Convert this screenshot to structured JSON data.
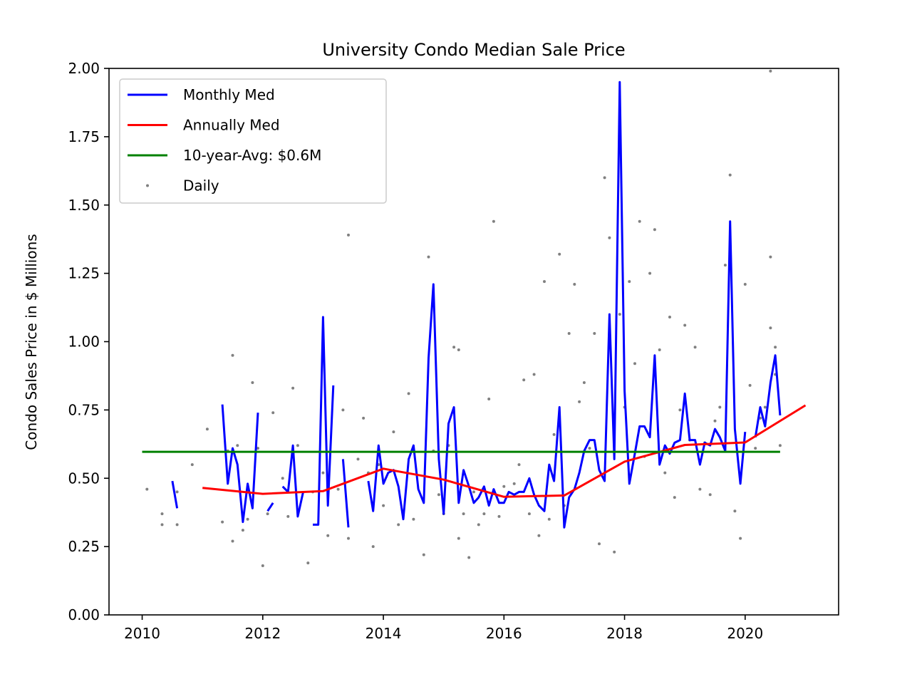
{
  "chart_data": {
    "type": "line",
    "title": "University Condo Median Sale Price",
    "xlabel": "",
    "ylabel": "Condo Sales Price in $ Millions",
    "xlim": [
      2009.45,
      2021.55
    ],
    "ylim": [
      0,
      2.0
    ],
    "xticks": [
      2010,
      2012,
      2014,
      2016,
      2018,
      2020
    ],
    "xtick_labels": [
      "2010",
      "2012",
      "2014",
      "2016",
      "2018",
      "2020"
    ],
    "yticks": [
      0,
      0.25,
      0.5,
      0.75,
      1.0,
      1.25,
      1.5,
      1.75,
      2.0
    ],
    "ytick_labels": [
      "0.00",
      "0.25",
      "0.50",
      "0.75",
      "1.00",
      "1.25",
      "1.50",
      "1.75",
      "2.00"
    ],
    "grid": false,
    "legend_position": "top-left",
    "legend": [
      {
        "label": "Monthly Med",
        "color": "#0000ff",
        "kind": "line"
      },
      {
        "label": "Annually Med",
        "color": "#ff0000",
        "kind": "line"
      },
      {
        "label": "10-year-Avg: $0.6M",
        "color": "#008000",
        "kind": "line"
      },
      {
        "label": "Daily",
        "color": "#808080",
        "kind": "dot"
      }
    ],
    "series": [
      {
        "name": "Monthly Med",
        "color": "#0000ff",
        "segments": [
          [
            [
              2010.5,
              0.49
            ],
            [
              2010.58,
              0.39
            ]
          ],
          [
            [
              2012.08,
              0.38
            ],
            [
              2012.17,
              0.41
            ]
          ],
          [
            [
              2011.33,
              0.77
            ],
            [
              2011.42,
              0.48
            ],
            [
              2011.5,
              0.61
            ],
            [
              2011.58,
              0.55
            ],
            [
              2011.67,
              0.34
            ],
            [
              2011.75,
              0.48
            ],
            [
              2011.83,
              0.39
            ],
            [
              2011.92,
              0.74
            ]
          ],
          [
            [
              2012.33,
              0.47
            ],
            [
              2012.42,
              0.45
            ],
            [
              2012.5,
              0.62
            ],
            [
              2012.58,
              0.36
            ],
            [
              2012.67,
              0.45
            ]
          ],
          [
            [
              2012.83,
              0.33
            ],
            [
              2012.92,
              0.33
            ],
            [
              2013.0,
              1.09
            ],
            [
              2013.08,
              0.4
            ],
            [
              2013.17,
              0.84
            ]
          ],
          [
            [
              2013.33,
              0.57
            ],
            [
              2013.42,
              0.32
            ]
          ],
          [
            [
              2013.75,
              0.49
            ],
            [
              2013.83,
              0.38
            ],
            [
              2013.92,
              0.62
            ],
            [
              2014.0,
              0.48
            ],
            [
              2014.08,
              0.52
            ],
            [
              2014.17,
              0.53
            ],
            [
              2014.25,
              0.47
            ],
            [
              2014.33,
              0.35
            ],
            [
              2014.42,
              0.57
            ],
            [
              2014.5,
              0.62
            ],
            [
              2014.58,
              0.46
            ],
            [
              2014.67,
              0.41
            ],
            [
              2014.75,
              0.94
            ],
            [
              2014.83,
              1.21
            ],
            [
              2014.92,
              0.57
            ],
            [
              2015.0,
              0.37
            ],
            [
              2015.08,
              0.7
            ],
            [
              2015.17,
              0.76
            ],
            [
              2015.25,
              0.41
            ],
            [
              2015.33,
              0.53
            ],
            [
              2015.42,
              0.47
            ],
            [
              2015.5,
              0.41
            ],
            [
              2015.58,
              0.43
            ],
            [
              2015.67,
              0.47
            ],
            [
              2015.75,
              0.4
            ],
            [
              2015.83,
              0.46
            ],
            [
              2015.92,
              0.41
            ],
            [
              2016.0,
              0.41
            ],
            [
              2016.08,
              0.45
            ],
            [
              2016.17,
              0.44
            ],
            [
              2016.25,
              0.45
            ],
            [
              2016.33,
              0.45
            ],
            [
              2016.42,
              0.5
            ],
            [
              2016.5,
              0.44
            ],
            [
              2016.58,
              0.4
            ],
            [
              2016.67,
              0.38
            ],
            [
              2016.75,
              0.55
            ],
            [
              2016.83,
              0.49
            ],
            [
              2016.92,
              0.76
            ],
            [
              2017.0,
              0.32
            ],
            [
              2017.08,
              0.43
            ],
            [
              2017.17,
              0.46
            ],
            [
              2017.25,
              0.52
            ],
            [
              2017.33,
              0.6
            ],
            [
              2017.42,
              0.64
            ],
            [
              2017.5,
              0.64
            ],
            [
              2017.58,
              0.53
            ],
            [
              2017.67,
              0.49
            ],
            [
              2017.75,
              1.1
            ],
            [
              2017.83,
              0.57
            ],
            [
              2017.92,
              1.95
            ],
            [
              2018.0,
              0.82
            ],
            [
              2018.08,
              0.48
            ],
            [
              2018.17,
              0.59
            ],
            [
              2018.25,
              0.69
            ],
            [
              2018.33,
              0.69
            ],
            [
              2018.42,
              0.65
            ],
            [
              2018.5,
              0.95
            ],
            [
              2018.58,
              0.55
            ],
            [
              2018.67,
              0.62
            ],
            [
              2018.75,
              0.59
            ],
            [
              2018.83,
              0.63
            ],
            [
              2018.92,
              0.64
            ],
            [
              2019.0,
              0.81
            ],
            [
              2019.08,
              0.64
            ],
            [
              2019.17,
              0.64
            ],
            [
              2019.25,
              0.55
            ],
            [
              2019.33,
              0.63
            ],
            [
              2019.42,
              0.62
            ],
            [
              2019.5,
              0.68
            ],
            [
              2019.58,
              0.65
            ],
            [
              2019.67,
              0.6
            ],
            [
              2019.75,
              1.44
            ],
            [
              2019.83,
              0.68
            ],
            [
              2019.92,
              0.48
            ],
            [
              2020.0,
              0.67
            ]
          ],
          [
            [
              2020.17,
              0.65
            ],
            [
              2020.25,
              0.76
            ],
            [
              2020.33,
              0.69
            ],
            [
              2020.42,
              0.85
            ],
            [
              2020.5,
              0.95
            ],
            [
              2020.58,
              0.73
            ]
          ]
        ]
      },
      {
        "name": "Annually Med",
        "color": "#ff0000",
        "x": [
          2011.0,
          2012.0,
          2013.0,
          2014.0,
          2015.0,
          2016.0,
          2017.0,
          2018.0,
          2019.0,
          2020.0,
          2021.0
        ],
        "y": [
          0.465,
          0.443,
          0.453,
          0.535,
          0.495,
          0.432,
          0.437,
          0.561,
          0.622,
          0.631,
          0.767
        ]
      },
      {
        "name": "10-year-Avg: $0.6M",
        "color": "#008000",
        "x": [
          2010.0,
          2020.58
        ],
        "y": [
          0.597,
          0.597
        ]
      },
      {
        "name": "Daily",
        "color": "#808080",
        "kind": "scatter",
        "points": [
          [
            2010.08,
            0.46
          ],
          [
            2010.33,
            0.37
          ],
          [
            2010.33,
            0.33
          ],
          [
            2010.58,
            0.33
          ],
          [
            2010.58,
            0.45
          ],
          [
            2010.83,
            0.55
          ],
          [
            2011.08,
            0.68
          ],
          [
            2011.33,
            0.34
          ],
          [
            2011.42,
            0.6
          ],
          [
            2011.5,
            0.27
          ],
          [
            2011.5,
            0.95
          ],
          [
            2011.58,
            0.62
          ],
          [
            2011.67,
            0.31
          ],
          [
            2011.75,
            0.35
          ],
          [
            2011.83,
            0.85
          ],
          [
            2011.92,
            0.61
          ],
          [
            2012.0,
            0.18
          ],
          [
            2012.08,
            0.37
          ],
          [
            2012.17,
            0.74
          ],
          [
            2012.33,
            0.5
          ],
          [
            2012.42,
            0.36
          ],
          [
            2012.5,
            0.83
          ],
          [
            2012.58,
            0.62
          ],
          [
            2012.75,
            0.19
          ],
          [
            2012.83,
            0.45
          ],
          [
            2013.0,
            0.52
          ],
          [
            2013.08,
            0.29
          ],
          [
            2013.25,
            0.46
          ],
          [
            2013.33,
            0.75
          ],
          [
            2013.42,
            1.39
          ],
          [
            2013.42,
            0.28
          ],
          [
            2013.58,
            0.57
          ],
          [
            2013.67,
            0.72
          ],
          [
            2013.75,
            0.52
          ],
          [
            2013.83,
            0.25
          ],
          [
            2013.92,
            0.55
          ],
          [
            2014.0,
            0.4
          ],
          [
            2014.17,
            0.67
          ],
          [
            2014.25,
            0.33
          ],
          [
            2014.42,
            0.81
          ],
          [
            2014.5,
            0.35
          ],
          [
            2014.67,
            0.22
          ],
          [
            2014.75,
            1.31
          ],
          [
            2014.83,
            0.6
          ],
          [
            2014.92,
            0.44
          ],
          [
            2015.0,
            0.37
          ],
          [
            2015.08,
            0.62
          ],
          [
            2015.17,
            0.98
          ],
          [
            2015.25,
            0.97
          ],
          [
            2015.25,
            0.28
          ],
          [
            2015.33,
            0.37
          ],
          [
            2015.42,
            0.21
          ],
          [
            2015.5,
            0.45
          ],
          [
            2015.58,
            0.33
          ],
          [
            2015.67,
            0.37
          ],
          [
            2015.75,
            0.79
          ],
          [
            2015.83,
            1.44
          ],
          [
            2015.92,
            0.36
          ],
          [
            2016.0,
            0.47
          ],
          [
            2016.17,
            0.48
          ],
          [
            2016.25,
            0.55
          ],
          [
            2016.33,
            0.86
          ],
          [
            2016.42,
            0.37
          ],
          [
            2016.5,
            0.88
          ],
          [
            2016.58,
            0.29
          ],
          [
            2016.67,
            1.22
          ],
          [
            2016.75,
            0.35
          ],
          [
            2016.83,
            0.66
          ],
          [
            2016.92,
            1.32
          ],
          [
            2017.0,
            0.4
          ],
          [
            2017.08,
            1.03
          ],
          [
            2017.17,
            1.21
          ],
          [
            2017.25,
            0.78
          ],
          [
            2017.33,
            0.85
          ],
          [
            2017.42,
            0.61
          ],
          [
            2017.5,
            1.03
          ],
          [
            2017.58,
            0.26
          ],
          [
            2017.67,
            1.6
          ],
          [
            2017.75,
            1.38
          ],
          [
            2017.83,
            0.23
          ],
          [
            2017.92,
            1.1
          ],
          [
            2018.0,
            0.76
          ],
          [
            2018.08,
            1.22
          ],
          [
            2018.17,
            0.92
          ],
          [
            2018.25,
            1.44
          ],
          [
            2018.33,
            0.58
          ],
          [
            2018.42,
            1.25
          ],
          [
            2018.5,
            1.41
          ],
          [
            2018.58,
            0.97
          ],
          [
            2018.67,
            0.52
          ],
          [
            2018.75,
            1.09
          ],
          [
            2018.83,
            0.43
          ],
          [
            2018.92,
            0.75
          ],
          [
            2019.0,
            1.06
          ],
          [
            2019.08,
            0.64
          ],
          [
            2019.17,
            0.98
          ],
          [
            2019.25,
            0.46
          ],
          [
            2019.33,
            0.63
          ],
          [
            2019.42,
            0.44
          ],
          [
            2019.5,
            0.71
          ],
          [
            2019.58,
            0.76
          ],
          [
            2019.67,
            1.28
          ],
          [
            2019.75,
            1.61
          ],
          [
            2019.83,
            0.38
          ],
          [
            2019.92,
            0.28
          ],
          [
            2020.0,
            1.21
          ],
          [
            2020.08,
            0.84
          ],
          [
            2020.17,
            0.61
          ],
          [
            2020.25,
            0.72
          ],
          [
            2020.33,
            0.76
          ],
          [
            2020.42,
            1.31
          ],
          [
            2020.42,
            1.05
          ],
          [
            2020.5,
            0.98
          ],
          [
            2020.42,
            1.99
          ],
          [
            2020.5,
            0.88
          ],
          [
            2020.58,
            0.62
          ]
        ]
      }
    ]
  }
}
